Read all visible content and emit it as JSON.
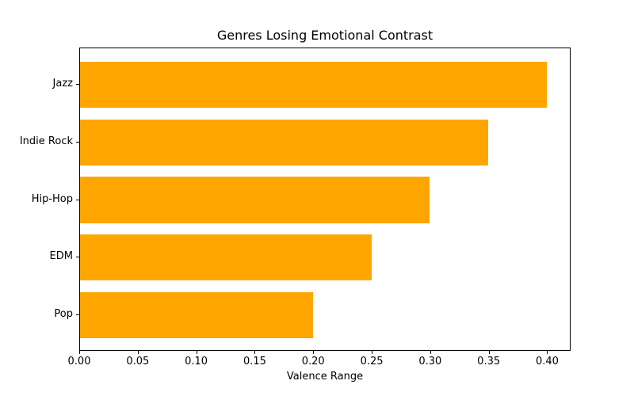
{
  "chart_data": {
    "type": "bar",
    "orientation": "horizontal",
    "title": "Genres Losing Emotional Contrast",
    "xlabel": "Valence Range",
    "ylabel": "",
    "categories": [
      "Jazz",
      "Indie Rock",
      "Hip-Hop",
      "EDM",
      "Pop"
    ],
    "values": [
      0.4,
      0.35,
      0.3,
      0.25,
      0.2
    ],
    "bar_color": "#FFA500",
    "xlim": [
      0,
      0.42
    ],
    "xticks": [
      0.0,
      0.05,
      0.1,
      0.15,
      0.2,
      0.25,
      0.3,
      0.35,
      0.4
    ],
    "xtick_labels": [
      "0.00",
      "0.05",
      "0.10",
      "0.15",
      "0.20",
      "0.25",
      "0.30",
      "0.35",
      "0.40"
    ],
    "grid": false,
    "legend": null,
    "bar_relative_height": 0.8,
    "axis_color": "#000000",
    "text_color": "#000000",
    "background_color": "#FFFFFF"
  }
}
